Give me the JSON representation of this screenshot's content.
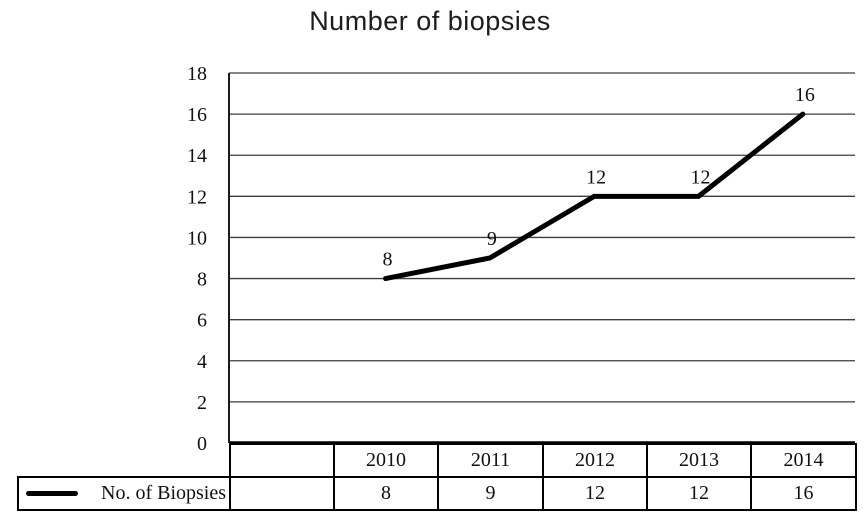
{
  "chart_data": {
    "type": "line",
    "title": "Number of biopsies",
    "xlabel": "",
    "ylabel": "",
    "categories": [
      "",
      "2010",
      "2011",
      "2012",
      "2013",
      "2014"
    ],
    "series": [
      {
        "name": "No. of Biopsies",
        "values": [
          null,
          8,
          9,
          12,
          12,
          16
        ]
      }
    ],
    "ylim": [
      0,
      18
    ],
    "yticks": [
      0,
      2,
      4,
      6,
      8,
      10,
      12,
      14,
      16,
      18
    ],
    "grid": "horizontal",
    "data_labels": "above",
    "legend_position": "data-table-left",
    "colors": {
      "line": "#000000",
      "grid": "#3d3d3d",
      "axis": "#000000",
      "plot_border": "#1a1a1a",
      "text": "#111111",
      "background": "#ffffff"
    }
  }
}
